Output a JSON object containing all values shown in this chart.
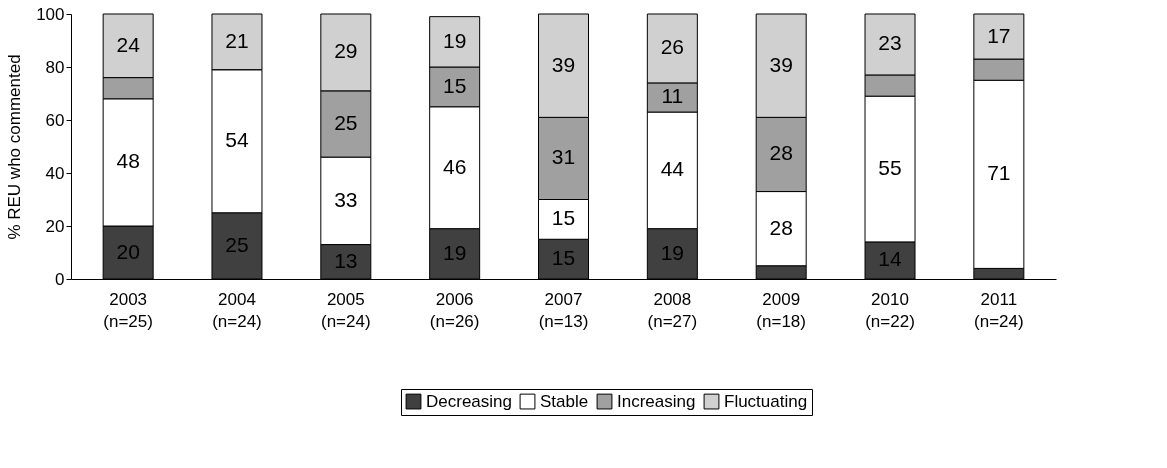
{
  "chart_data": {
    "type": "bar",
    "stacked": true,
    "ylabel": "% REU who commented",
    "categories": [
      "2003 (n=25)",
      "2004 (n=24)",
      "2005 (n=24)",
      "2006 (n=26)",
      "2007 (n=13)",
      "2008 (n=27)",
      "2009 (n=18)",
      "2010 (n=22)",
      "2011 (n=24)"
    ],
    "series": [
      {
        "name": "Decreasing",
        "color": "#404040",
        "values": [
          20,
          25,
          13,
          19,
          15,
          19,
          5,
          14,
          4
        ],
        "value_labels": [
          "20",
          "25",
          "13",
          "19",
          "15",
          "19",
          null,
          "14",
          null
        ]
      },
      {
        "name": "Stable",
        "color": "#ffffff",
        "values": [
          48,
          54,
          33,
          46,
          15,
          44,
          28,
          55,
          71
        ],
        "value_labels": [
          "48",
          "54",
          "33",
          "46",
          "15",
          "44",
          "28",
          "55",
          "71"
        ]
      },
      {
        "name": "Increasing",
        "color": "#a0a0a0",
        "values": [
          8,
          0,
          25,
          15,
          31,
          11,
          28,
          8,
          8
        ],
        "value_labels": [
          null,
          null,
          "25",
          "15",
          "31",
          "11",
          "28",
          null,
          null
        ]
      },
      {
        "name": "Fluctuating",
        "color": "#d0d0d0",
        "values": [
          24,
          21,
          29,
          19,
          39,
          26,
          39,
          23,
          17
        ],
        "value_labels": [
          "24",
          "21",
          "29",
          "19",
          "39",
          "26",
          "39",
          "23",
          "17"
        ]
      }
    ],
    "ylim": [
      0,
      100
    ],
    "yticks": [
      0,
      20,
      40,
      60,
      80,
      100
    ],
    "grid": false,
    "legend": "bottom"
  }
}
